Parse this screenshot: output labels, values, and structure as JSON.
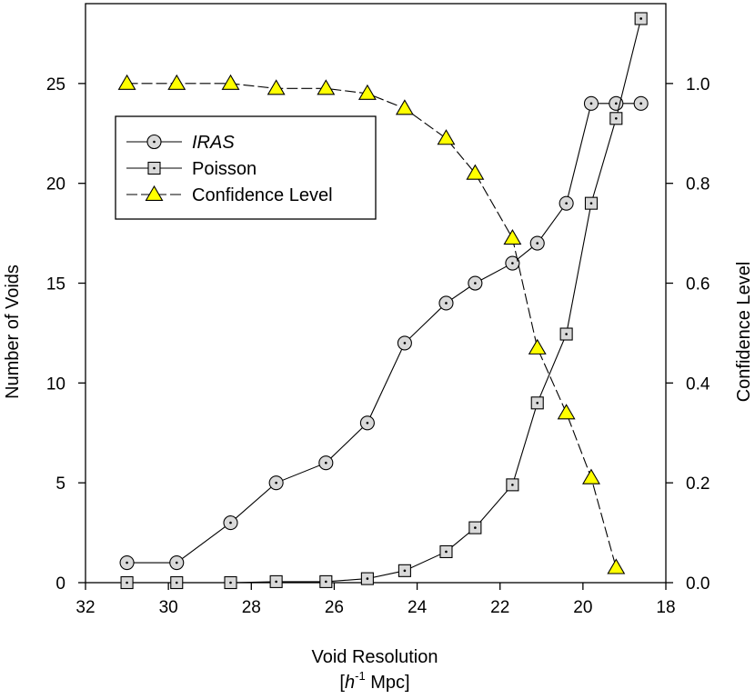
{
  "chart_data": {
    "type": "line",
    "x": [
      31.0,
      29.8,
      28.5,
      27.4,
      26.2,
      25.2,
      24.3,
      23.3,
      22.6,
      21.7,
      21.1,
      20.4,
      19.8,
      19.2,
      18.6
    ],
    "series": [
      {
        "name": "IRAS",
        "axis": "left",
        "marker": "circle",
        "line_style": "solid",
        "x": [
          31.0,
          29.8,
          28.5,
          27.4,
          26.2,
          25.2,
          24.3,
          23.3,
          22.6,
          21.7,
          21.1,
          20.4,
          19.8,
          19.2,
          18.6
        ],
        "values": [
          1,
          1,
          3,
          5,
          6,
          8,
          12,
          14,
          15,
          16,
          17,
          19,
          24,
          24,
          24
        ]
      },
      {
        "name": "Poisson",
        "axis": "left",
        "marker": "square",
        "line_style": "solid",
        "x": [
          31.0,
          29.8,
          28.5,
          27.4,
          26.2,
          25.2,
          24.3,
          23.3,
          22.6,
          21.7,
          21.1,
          20.4,
          19.8,
          19.2,
          18.6
        ],
        "values": [
          0.0,
          0.0,
          0.0,
          0.05,
          0.05,
          0.2,
          0.6,
          1.55,
          2.75,
          4.9,
          9.0,
          12.45,
          19.0,
          23.25,
          28.25
        ]
      },
      {
        "name": "Confidence Level",
        "axis": "right",
        "marker": "triangle",
        "line_style": "dashed",
        "x": [
          31.0,
          29.8,
          28.5,
          27.4,
          26.2,
          25.2,
          24.3,
          23.3,
          22.6,
          21.7,
          21.1,
          20.4,
          19.8,
          19.2
        ],
        "values": [
          1.0,
          1.0,
          1.0,
          0.99,
          0.99,
          0.98,
          0.95,
          0.89,
          0.82,
          0.69,
          0.47,
          0.34,
          0.21,
          0.03
        ]
      }
    ],
    "xlabel_line1": "Void Resolution",
    "xlabel_line2_open": "[",
    "xlabel_line2_h": "h",
    "xlabel_line2_sup": "-1",
    "xlabel_line2_rest": " Mpc]",
    "ylabel_left": "Number of Voids",
    "ylabel_right": "Confidence Level",
    "xlim": [
      32,
      18
    ],
    "ylim_left": [
      0,
      29
    ],
    "ylim_right": [
      0,
      1.16
    ],
    "xticks": [
      32,
      30,
      28,
      26,
      24,
      22,
      20,
      18
    ],
    "yticks_left": [
      0,
      5,
      10,
      15,
      20,
      25
    ],
    "yticks_right": [
      "0.0",
      "0.2",
      "0.4",
      "0.6",
      "0.8",
      "1.0"
    ],
    "yticks_right_values": [
      0.0,
      0.2,
      0.4,
      0.6,
      0.8,
      1.0
    ],
    "legend_position": "upper-left",
    "colors": {
      "line": "#000000",
      "marker_fill": "#d9d9d9",
      "triangle_fill": "#ffff00",
      "axis": "#000000"
    }
  }
}
